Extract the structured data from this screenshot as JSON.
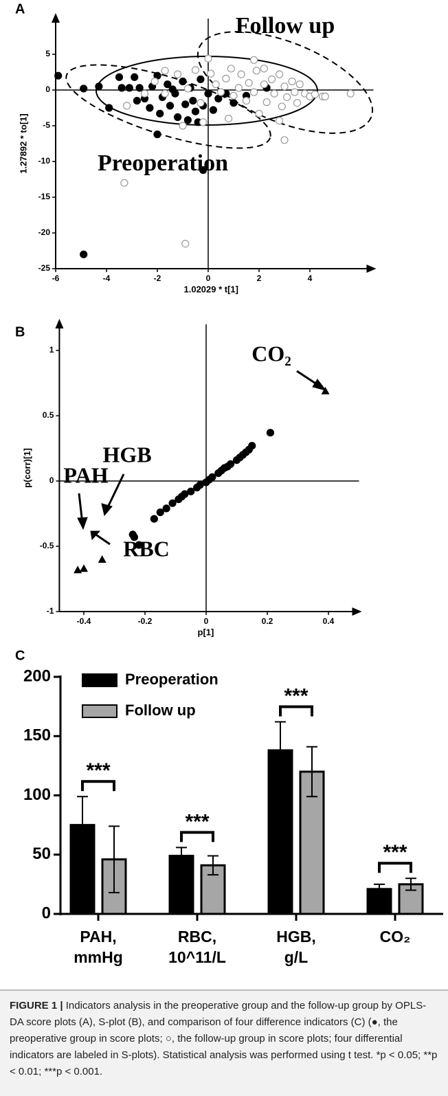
{
  "chart_data": [
    {
      "type": "scatter",
      "panel": "A",
      "xlabel": "1.02029 * t[1]",
      "ylabel": "1.27892 * to[1]",
      "xlim": [
        -6,
        6.5
      ],
      "ylim": [
        -25,
        10
      ],
      "xticks": [
        -6,
        -4,
        -2,
        0,
        2,
        4
      ],
      "yticks": [
        -25,
        -20,
        -15,
        -10,
        -5,
        0,
        5
      ],
      "series": [
        {
          "name": "Preoperation",
          "color": "#000000",
          "edgecolor": "#000000",
          "x": [
            -5.9,
            -4.9,
            -4.3,
            -3.9,
            -3.5,
            -3.4,
            -3.1,
            -2.9,
            -2.7,
            -2.5,
            -2.3,
            -2.2,
            -2.0,
            -1.8,
            -1.6,
            -1.5,
            -1.3,
            -1.2,
            -1.0,
            -0.9,
            -0.7,
            -0.6,
            -0.5,
            -0.4,
            -0.3,
            -0.2,
            0.0,
            0.2,
            0.4,
            0.7,
            1.0,
            1.5,
            2.3,
            -2.0,
            -0.2,
            -4.9,
            -2.8,
            -1.9,
            -0.8,
            -1.4
          ],
          "y": [
            2,
            0.2,
            0.5,
            -2.5,
            1.8,
            0.3,
            0.3,
            1.8,
            0.3,
            -1.2,
            -2.5,
            0.5,
            2.0,
            -1,
            0.8,
            -2.2,
            -0.5,
            -3.8,
            1.2,
            -2,
            0.3,
            -1.5,
            -3.0,
            -4.5,
            1.5,
            -2.2,
            -0.5,
            -2.8,
            -1.2,
            -0.5,
            -1.8,
            -0.8,
            0.3,
            -6.2,
            -11.2,
            -23,
            -1.5,
            -3.3,
            -4.2,
            0.1
          ]
        },
        {
          "name": "Follow up",
          "color": "#ffffff",
          "edgecolor": "#9a9a9a",
          "x": [
            -3.3,
            -0.9,
            -3.2,
            -2.5,
            -2.1,
            -1.7,
            -1.2,
            -0.8,
            -0.5,
            -0.3,
            0.0,
            0.1,
            0.3,
            0.5,
            0.7,
            0.9,
            1.0,
            1.2,
            1.3,
            1.5,
            1.6,
            1.8,
            1.9,
            2.0,
            2.2,
            2.3,
            2.5,
            2.6,
            2.8,
            2.9,
            3.0,
            3.1,
            3.3,
            3.4,
            3.5,
            3.6,
            3.8,
            4.0,
            4.2,
            4.5,
            4.6,
            5.6,
            3.0,
            2.8,
            -1.0,
            -0.2,
            0.8,
            1.8,
            2.2,
            -1.7
          ],
          "y": [
            -13,
            -21.5,
            -2.2,
            -0.5,
            1.2,
            -0.5,
            2.2,
            0.2,
            2.8,
            -1.8,
            4.4,
            2.3,
            0.8,
            -0.3,
            1.6,
            3.0,
            -0.8,
            0.3,
            2.2,
            -1.5,
            1.0,
            -0.3,
            2.7,
            -3.3,
            0.8,
            -1.7,
            1.5,
            -0.5,
            2.2,
            -2.3,
            0.5,
            -1.0,
            1.2,
            -0.3,
            -1.8,
            0.8,
            -0.5,
            -0.9,
            -0.6,
            -0.9,
            -0.9,
            -0.5,
            -7.0,
            -4.3,
            -5.0,
            -4.5,
            -4.0,
            4.2,
            3.0,
            2.7
          ]
        }
      ]
    },
    {
      "type": "scatter",
      "panel": "B",
      "xlabel": "p[1]",
      "ylabel": "p(corr)[1]",
      "xlim": [
        -0.48,
        0.5
      ],
      "ylim": [
        -1,
        1.2
      ],
      "xticks": [
        -0.4,
        -0.2,
        0,
        0.2,
        0.4
      ],
      "yticks": [
        -1,
        -0.5,
        0,
        0.5,
        1
      ],
      "series": [
        {
          "marker": "circle",
          "color": "#000000",
          "x": [
            -0.24,
            -0.235,
            -0.22,
            -0.17,
            -0.15,
            -0.13,
            -0.11,
            -0.09,
            -0.08,
            -0.07,
            -0.05,
            -0.03,
            -0.02,
            0,
            0.01,
            0.02,
            0.04,
            0.05,
            0.06,
            0.07,
            0.08,
            0.1,
            0.11,
            0.12,
            0.13,
            0.14,
            0.15,
            0.21
          ],
          "y": [
            -0.41,
            -0.43,
            -0.49,
            -0.29,
            -0.24,
            -0.21,
            -0.17,
            -0.14,
            -0.12,
            -0.1,
            -0.08,
            -0.05,
            -0.03,
            -0.01,
            0.01,
            0.03,
            0.06,
            0.08,
            0.1,
            0.11,
            0.13,
            0.16,
            0.18,
            0.2,
            0.22,
            0.24,
            0.27,
            0.37
          ]
        },
        {
          "marker": "triangle",
          "color": "#000000",
          "labels": [
            "CO₂",
            "HGB",
            "PAH",
            "RBC"
          ],
          "x": [
            0.39,
            -0.34,
            -0.42,
            -0.4
          ],
          "y": [
            0.69,
            -0.6,
            -0.68,
            -0.67
          ]
        }
      ]
    },
    {
      "type": "bar",
      "panel": "C",
      "categories": [
        [
          "PAH,",
          "mmHg"
        ],
        [
          "RBC,",
          "10^11/L"
        ],
        [
          "HGB,",
          "g/L"
        ],
        [
          "CO₂"
        ]
      ],
      "ylim": [
        0,
        200
      ],
      "yticks": [
        0,
        50,
        100,
        150,
        200
      ],
      "series": [
        {
          "name": "Preoperation",
          "color": "#000000",
          "values": [
            75,
            49,
            138,
            21
          ],
          "errors": [
            24,
            7,
            24,
            4
          ]
        },
        {
          "name": "Follow up",
          "color": "#a6a6a6",
          "values": [
            46,
            41,
            120,
            25
          ],
          "errors": [
            28,
            8,
            21,
            5
          ]
        }
      ],
      "significance": [
        "***",
        "***",
        "***",
        "***"
      ]
    }
  ],
  "caption": {
    "label": "FIGURE 1 |",
    "text": "Indicators analysis in the preoperative group and the follow-up group by OPLS-DA score plots (A), S-plot (B), and comparison of four difference indicators (C) (●, the preoperative group in score plots; ○, the follow-up group in score plots; four differential indicators are labeled in S-plots). Statistical analysis was performed using t test. *p < 0.05; **p < 0.01; ***p < 0.001."
  }
}
